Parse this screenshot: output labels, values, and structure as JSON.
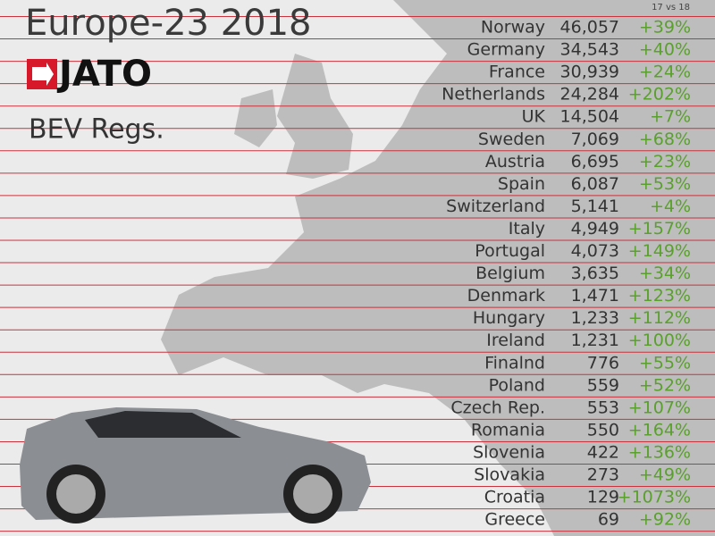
{
  "header": {
    "title": "Europe-23 2018",
    "logo": "JATO",
    "subtitle": "BEV Regs.",
    "change_label": "17 vs 18"
  },
  "table": {
    "rows": [
      [
        "Norway",
        "46,057",
        "+39%"
      ],
      [
        "Germany",
        "34,543",
        "+40%"
      ],
      [
        "France",
        "30,939",
        "+24%"
      ],
      [
        "Netherlands",
        "24,284",
        "+202%"
      ],
      [
        "UK",
        "14,504",
        "+7%"
      ],
      [
        "Sweden",
        "7,069",
        "+68%"
      ],
      [
        "Austria",
        "6,695",
        "+23%"
      ],
      [
        "Spain",
        "6,087",
        "+53%"
      ],
      [
        "Switzerland",
        "5,141",
        "+4%"
      ],
      [
        "Italy",
        "4,949",
        "+157%"
      ],
      [
        "Portugal",
        "4,073",
        "+149%"
      ],
      [
        "Belgium",
        "3,635",
        "+34%"
      ],
      [
        "Denmark",
        "1,471",
        "+123%"
      ],
      [
        "Hungary",
        "1,233",
        "+112%"
      ],
      [
        "Ireland",
        "1,231",
        "+100%"
      ],
      [
        "Finalnd",
        "776",
        "+55%"
      ],
      [
        "Poland",
        "559",
        "+52%"
      ],
      [
        "Czech Rep.",
        "553",
        "+107%"
      ],
      [
        "Romania",
        "550",
        "+164%"
      ],
      [
        "Slovenia",
        "422",
        "+136%"
      ],
      [
        "Slovakia",
        "273",
        "+49%"
      ],
      [
        "Croatia",
        "129",
        "+1073%"
      ],
      [
        "Greece",
        "69",
        "+92%"
      ]
    ]
  }
}
